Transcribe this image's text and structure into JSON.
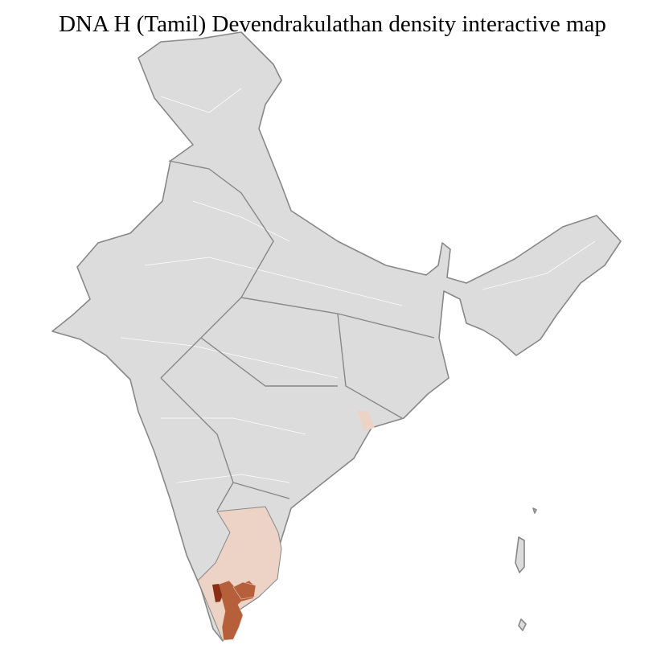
{
  "title": "DNA H (Tamil) Devendrakulathan density interactive map",
  "map": {
    "region": "India",
    "colors": {
      "no_data": "#dcdcdc",
      "low": "#ecd3c6",
      "medium": "#b5603a",
      "high": "#8b2e14",
      "state_border": "#888888",
      "district_border": "#ffffff"
    }
  }
}
